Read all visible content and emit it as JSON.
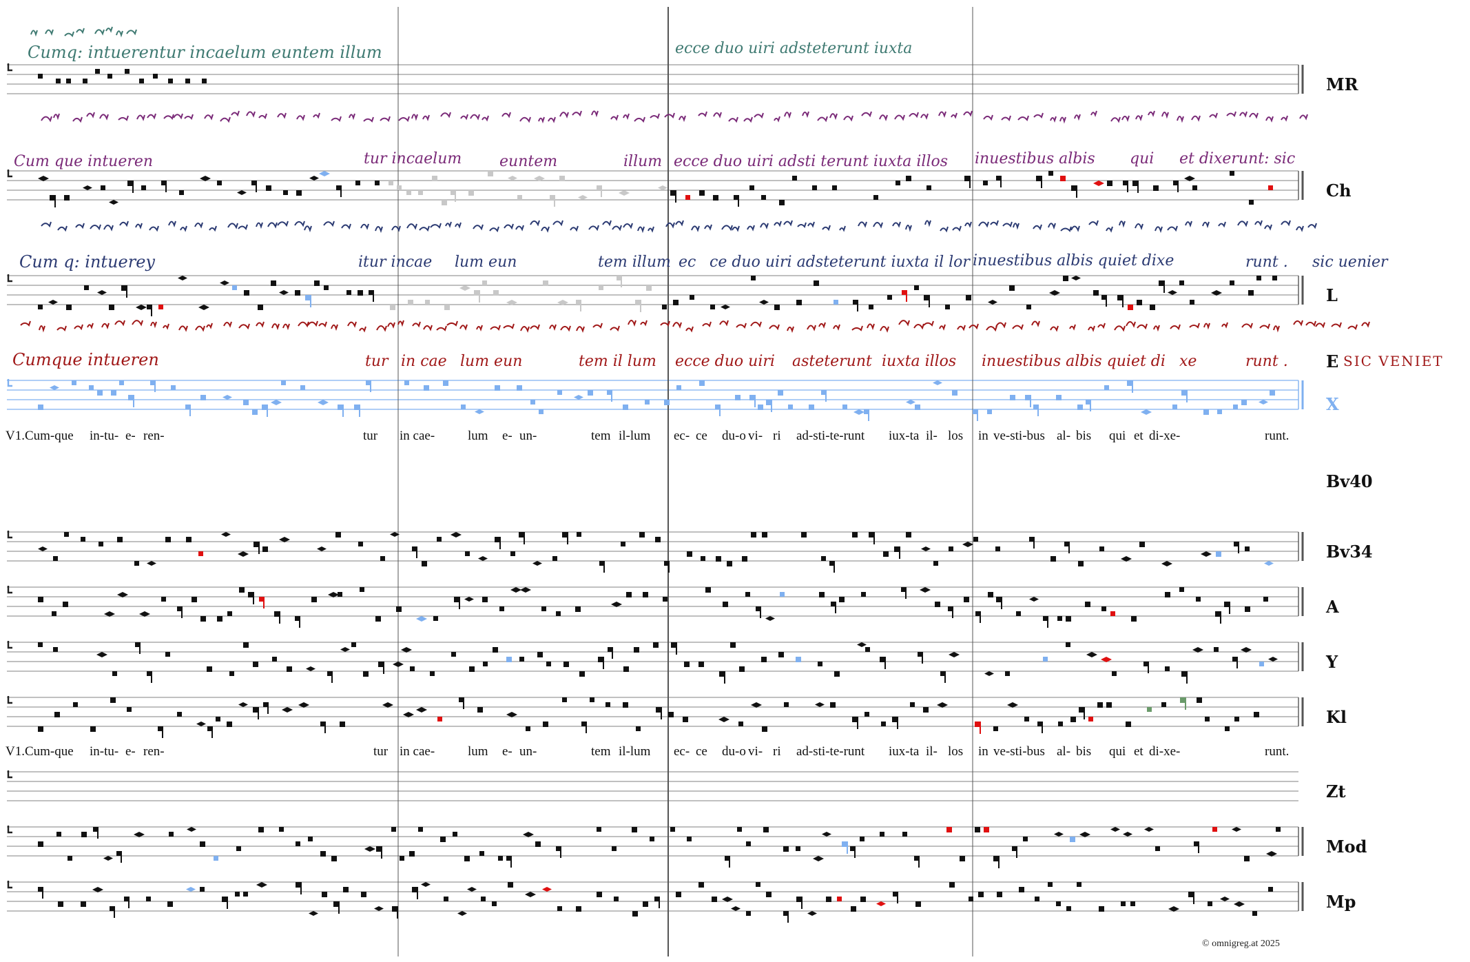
{
  "sigla": [
    {
      "id": "MR",
      "label": "MR",
      "blue": false
    },
    {
      "id": "Ch",
      "label": "Ch",
      "blue": false
    },
    {
      "id": "L",
      "label": "L",
      "blue": false
    },
    {
      "id": "E",
      "label": "E",
      "blue": false
    },
    {
      "id": "X",
      "label": "X",
      "blue": true
    },
    {
      "id": "Bv40",
      "label": "Bv40",
      "blue": false
    },
    {
      "id": "Bv34",
      "label": "Bv34",
      "blue": false
    },
    {
      "id": "A",
      "label": "A",
      "blue": false
    },
    {
      "id": "Y",
      "label": "Y",
      "blue": false
    },
    {
      "id": "Kl",
      "label": "Kl",
      "blue": false
    },
    {
      "id": "Zt",
      "label": "Zt",
      "blue": false
    },
    {
      "id": "Mod",
      "label": "Mod",
      "blue": false
    },
    {
      "id": "Mp",
      "label": "Mp",
      "blue": false
    }
  ],
  "lyrics": {
    "first": [
      "V1.Cum-que",
      "in-tu-",
      "e-",
      "ren-",
      "tur",
      "in cae-",
      "lum",
      "e-",
      "un-",
      "tem",
      "il-lum",
      "ec-",
      "ce",
      "du-o",
      "vi-",
      "ri",
      "ad-sti-te-runt",
      "iux-ta",
      "il-",
      "los",
      "in",
      "ve-sti-bus",
      "al-",
      "bis",
      "qui",
      "et",
      "di-xe-",
      "runt."
    ],
    "second": [
      "V1.Cum-que",
      "in-tu-",
      "e-",
      "ren-",
      "tur",
      "in cae-",
      "lum",
      "e-",
      "un-",
      "tem",
      "il-lum",
      "ec-",
      "ce",
      "du-o",
      "vi-",
      "ri",
      "ad-sti-te-runt",
      "iux-ta",
      "il-",
      "los",
      "in",
      "ve-sti-bus",
      "al-",
      "bis",
      "qui",
      "et",
      "di-xe-",
      "runt."
    ]
  },
  "manuscripts": {
    "mr_a": "Cumq: intuerentur incaelum euntem illum",
    "mr_b": "ecce duo   uiri adsteterunt iuxta",
    "ch": [
      "Cum que intueren",
      "tur incaelum",
      "euntem",
      "illum",
      "ecce duo uiri adsti terunt iuxta illos",
      "inuestibus albis",
      "qui",
      "et dixerunt: sic"
    ],
    "l": [
      "Cum q: intuerey",
      "itur incae",
      "lum eun",
      "tem illum",
      "ec",
      "ce duo uiri adsteterunt iuxta il lor",
      "inuestibus albis quiet dixe",
      "runt .",
      "sic uenier"
    ],
    "e": [
      "Cumque intueren",
      "tur",
      "in cae",
      "lum eun",
      "tem il lum",
      "ecce duo uiri",
      "asteterunt",
      "iuxta illos",
      "inuestibus albis quiet di",
      "xe",
      "runt .",
      "SIC VENIET"
    ]
  },
  "copyright": "©  omnigreg.at     2025",
  "colors": {
    "teal": "#3f7a72",
    "purple": "#7a2a78",
    "navy": "#2b3a72",
    "red": "#a01818",
    "blue": "#7fb0f0",
    "redNeume": "#e01010",
    "green": "#6a9a6a",
    "grey": "#c8c8c8",
    "ink": "#111111"
  }
}
